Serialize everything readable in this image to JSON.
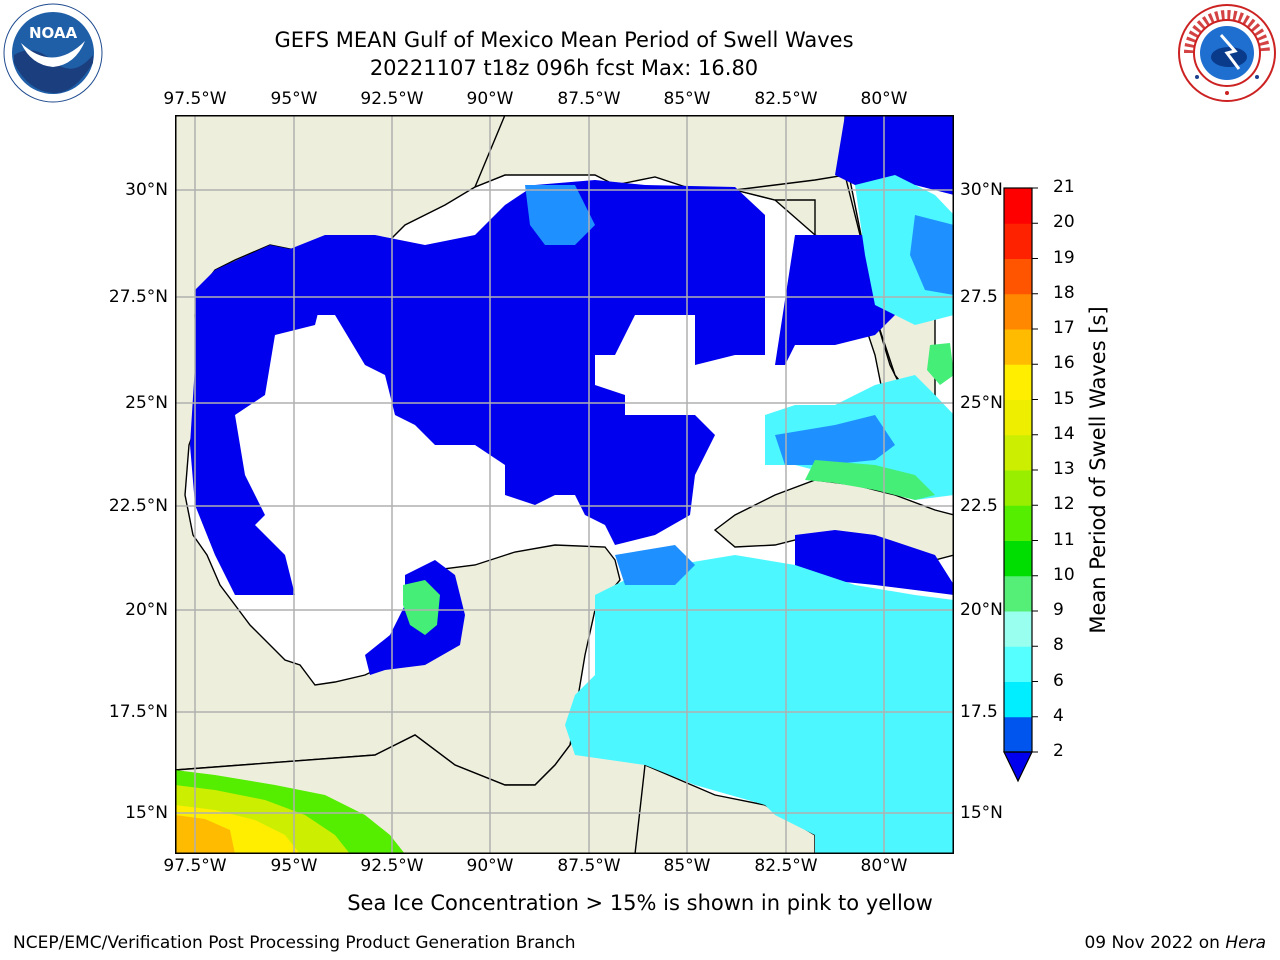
{
  "header": {
    "title_line1": "GEFS MEAN Gulf of Mexico Mean Period of Swell Waves",
    "title_line2": "20221107 t18z 096h fcst   Max: 16.80"
  },
  "logos": {
    "left": {
      "name": "noaa-logo",
      "text": "NOAA"
    },
    "right": {
      "name": "national-weather-service-logo",
      "text": "NATIONAL WEATHER SERVICE"
    }
  },
  "map": {
    "lon_labels": [
      "97.5°W",
      "95°W",
      "92.5°W",
      "90°W",
      "87.5°W",
      "85°W",
      "82.5°W",
      "80°W"
    ],
    "lat_labels_left": [
      "30°N",
      "27.5°N",
      "25°N",
      "22.5°N",
      "20°N",
      "17.5°N",
      "15°N"
    ],
    "lat_labels_right": [
      "30°N",
      "27.5",
      "25°N",
      "22.5",
      "20°N",
      "17.5",
      "15°N"
    ],
    "colors": {
      "land": "#eeeedd",
      "grid": "#b0b0b0",
      "coast": "#000000"
    }
  },
  "colorbar": {
    "label": "Mean Period of Swell Waves [s]",
    "ticks": [
      "2",
      "4",
      "6",
      "8",
      "9",
      "10",
      "11",
      "12",
      "13",
      "14",
      "15",
      "16",
      "17",
      "18",
      "19",
      "20",
      "21"
    ],
    "colors": [
      "#0055ee",
      "#00bbff",
      "#00eeff",
      "#55ffff",
      "#99ffee",
      "#55ee77",
      "#00dd00",
      "#55ee00",
      "#99ee00",
      "#ccee00",
      "#eeee00",
      "#ffee00",
      "#ffbb00",
      "#ff8800",
      "#ff5500",
      "#ff2200",
      "#ff0000"
    ],
    "extend_min_color": "#0000ee"
  },
  "note": "Sea Ice Concentration > 15% is shown in pink to yellow",
  "footer": {
    "left": "NCEP/EMC/Verification Post Processing Product Generation Branch",
    "right_date": "09 Nov 2022 on ",
    "right_machine": "Hera"
  }
}
